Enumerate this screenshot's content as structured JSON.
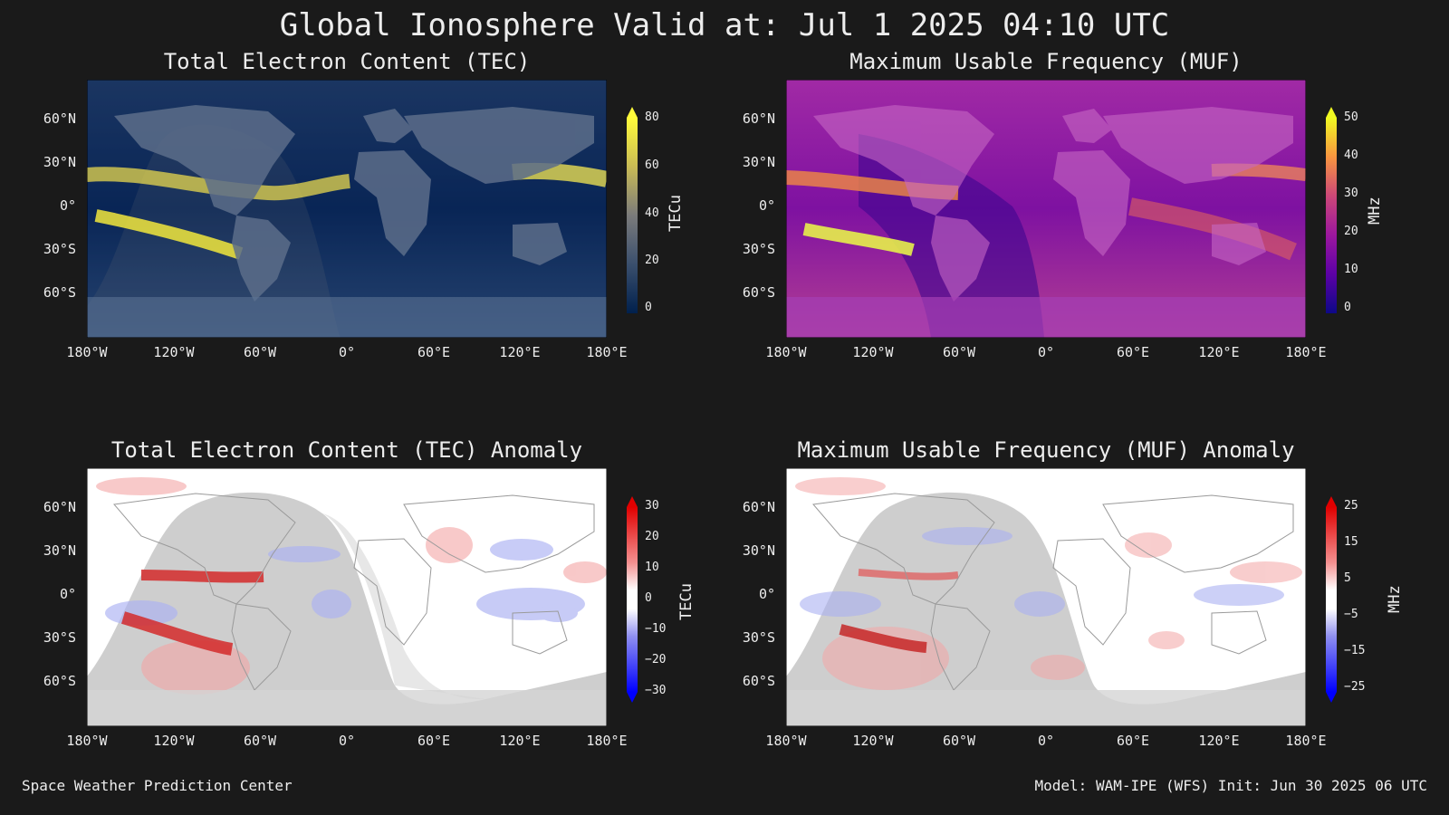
{
  "title": "Global Ionosphere Valid at: Jul 1 2025 04:10 UTC",
  "footer_left": "Space Weather Prediction Center",
  "footer_right": "Model: WAM-IPE (WFS) Init: Jun 30 2025 06 UTC",
  "lat_labels": [
    "60°N",
    "30°N",
    "0°",
    "30°S",
    "60°S"
  ],
  "lon_labels": [
    "180°W",
    "120°W",
    "60°W",
    "0°",
    "60°E",
    "120°E",
    "180°E"
  ],
  "panels": {
    "tec": {
      "title": "Total Electron Content (TEC)",
      "unit": "TECu",
      "ticks": [
        "80",
        "60",
        "40",
        "20",
        "0"
      ],
      "colormap": [
        "#00204d",
        "#1c3b6e",
        "#4a5a7a",
        "#7b7b7b",
        "#a79f6e",
        "#d8c94c",
        "#fffa3a"
      ]
    },
    "muf": {
      "title": "Maximum Usable Frequency (MUF)",
      "unit": "MHz",
      "ticks": [
        "50",
        "40",
        "30",
        "20",
        "10",
        "0"
      ],
      "colormap": [
        "#0d0887",
        "#5c01a6",
        "#9c179e",
        "#cc4778",
        "#ed7953",
        "#fdb42f",
        "#f0f921"
      ]
    },
    "tec_anom": {
      "title": "Total Electron Content (TEC) Anomaly",
      "unit": "TECu",
      "ticks": [
        "30",
        "20",
        "10",
        "0",
        "−10",
        "−20",
        "−30"
      ]
    },
    "muf_anom": {
      "title": "Maximum Usable Frequency (MUF) Anomaly",
      "unit": "MHz",
      "ticks": [
        "25",
        "15",
        "5",
        "−5",
        "−15",
        "−25"
      ]
    }
  }
}
